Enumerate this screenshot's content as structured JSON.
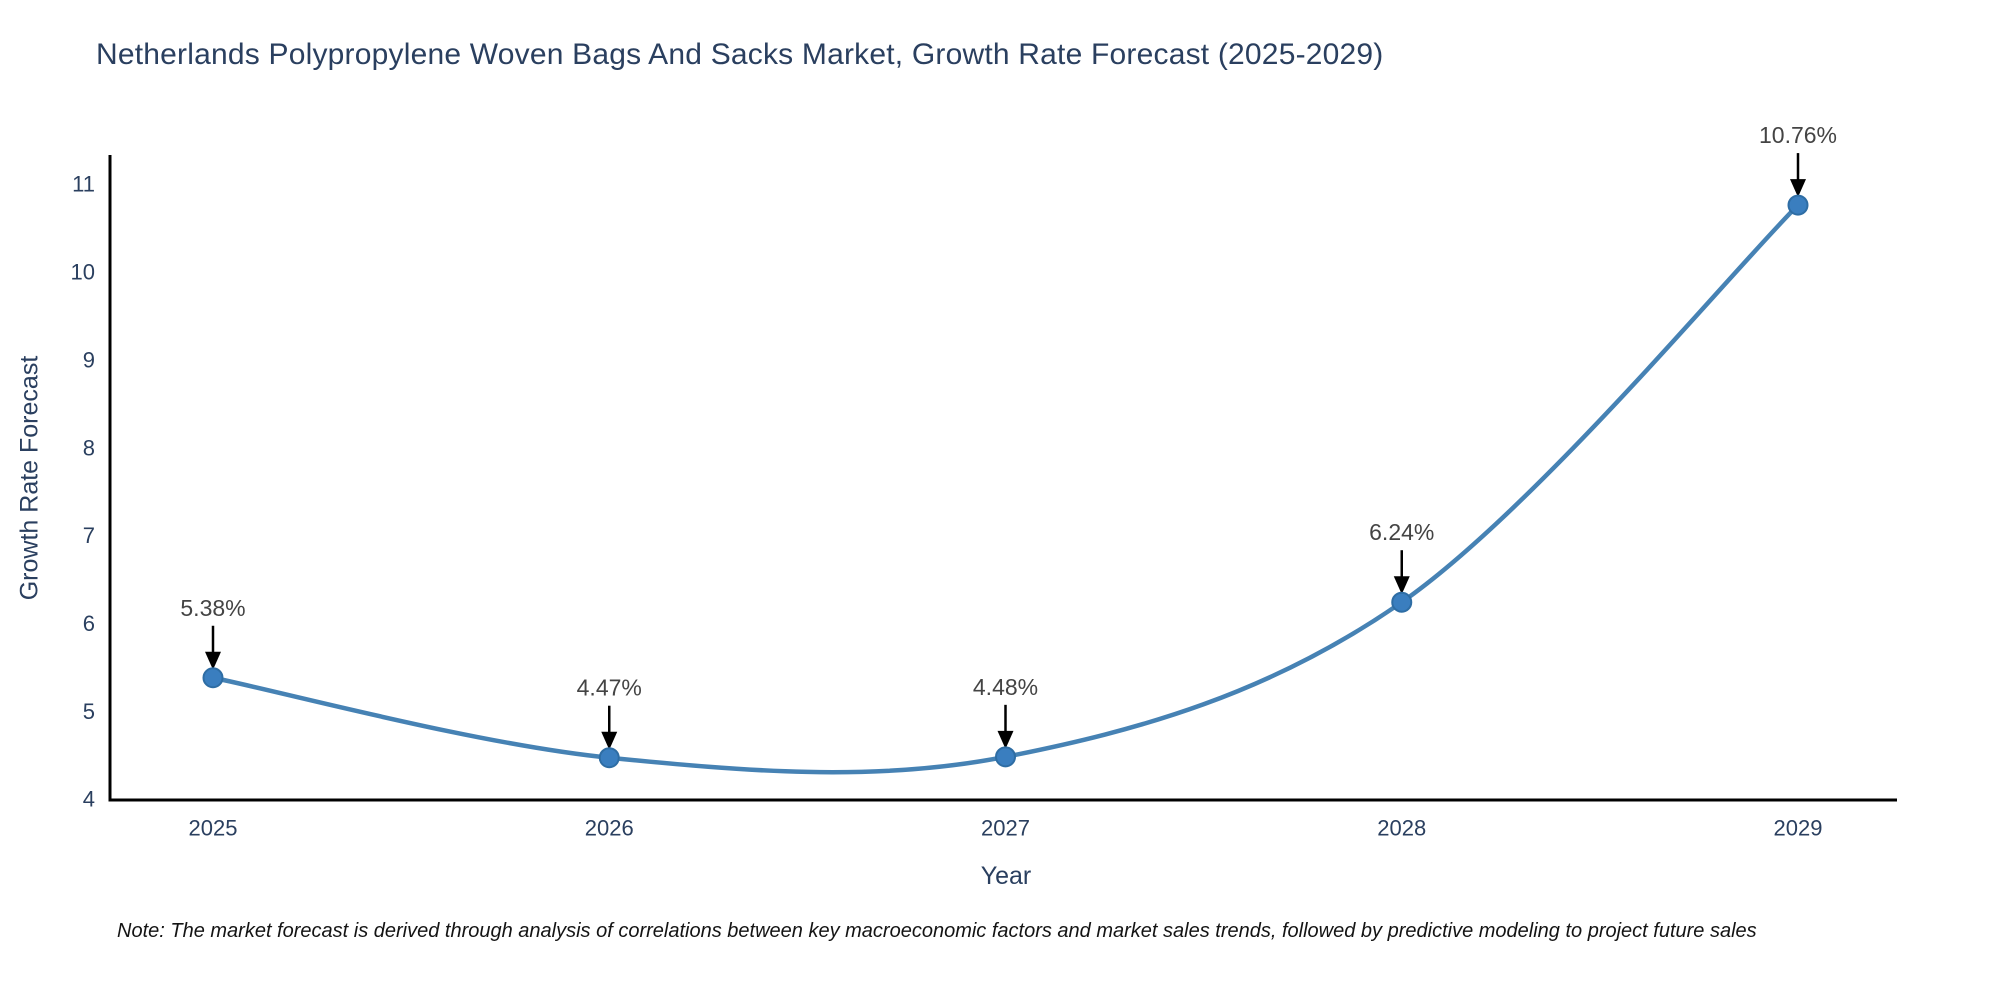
{
  "title": "Netherlands Polypropylene Woven Bags And Sacks Market, Growth Rate Forecast (2025-2029)",
  "note": "Note: The market forecast is derived through analysis of correlations between key macroeconomic factors and market sales trends, followed by predictive modeling to project future sales",
  "chart_data": {
    "type": "line",
    "curve": "spline",
    "title": "Netherlands Polypropylene Woven Bags And Sacks Market, Growth Rate Forecast (2025-2029)",
    "xlabel": "Year",
    "ylabel": "Growth Rate Forecast",
    "categories": [
      "2025",
      "2026",
      "2027",
      "2028",
      "2029"
    ],
    "values": [
      5.38,
      4.47,
      4.48,
      6.24,
      10.76
    ],
    "point_labels": [
      "5.38%",
      "4.47%",
      "4.48%",
      "6.24%",
      "10.76%"
    ],
    "ylim": [
      4,
      11
    ],
    "yticks": [
      4,
      5,
      6,
      7,
      8,
      9,
      10,
      11
    ],
    "grid": false,
    "legend": "none",
    "colors": {
      "line": "#4682b4",
      "marker_fill": "#3a7ebf",
      "marker_edge": "#2e6da4",
      "axis_line": "#000000",
      "text": "#2a3f5f",
      "annotation_text": "#444444",
      "annotation_arrow": "#000000"
    }
  }
}
